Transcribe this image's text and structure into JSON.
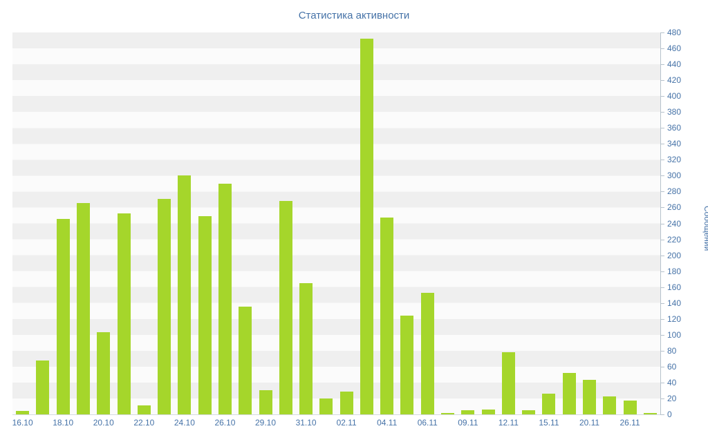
{
  "chart_data": {
    "type": "bar",
    "title": "Статистика активности",
    "xlabel": "",
    "ylabel": "Сообщений",
    "ylim": [
      0,
      480
    ],
    "ytick_step": 20,
    "grid": "alternating-horizontal-bands",
    "legend": "none",
    "bar_color": "#a5d62b",
    "text_color": "#4572a7",
    "categories": [
      "16.10",
      "",
      "18.10",
      "",
      "20.10",
      "",
      "22.10",
      "",
      "24.10",
      "",
      "26.10",
      "",
      "29.10",
      "",
      "31.10",
      "",
      "02.11",
      "",
      "04.11",
      "",
      "06.11",
      "",
      "09.11",
      "",
      "12.11",
      "",
      "15.11",
      "",
      "20.11",
      "",
      "26.11",
      ""
    ],
    "values": [
      4,
      68,
      246,
      266,
      103,
      253,
      11,
      271,
      300,
      249,
      290,
      135,
      30,
      268,
      165,
      20,
      29,
      472,
      247,
      124,
      153,
      2,
      5,
      6,
      78,
      5,
      26,
      52,
      43,
      23,
      17,
      2
    ]
  }
}
